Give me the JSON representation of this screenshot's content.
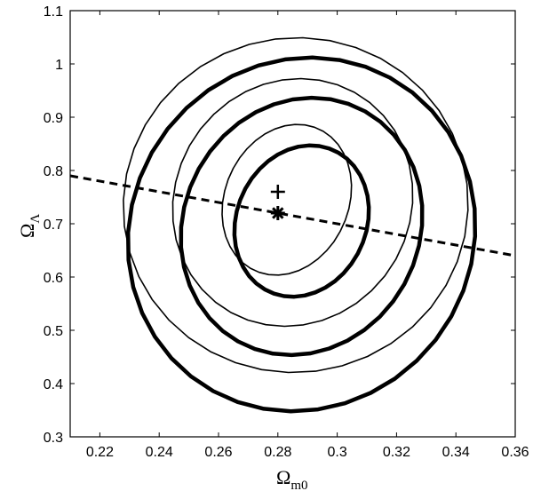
{
  "chart_data": {
    "type": "line",
    "xlabel": {
      "main": "Ω",
      "sub": "m0"
    },
    "ylabel": {
      "main": "Ω",
      "sub": "Λ"
    },
    "xlim": [
      0.21,
      0.36
    ],
    "ylim": [
      0.3,
      1.1
    ],
    "x_ticks": [
      "0.22",
      "0.24",
      "0.26",
      "0.28",
      "0.3",
      "0.32",
      "0.34",
      "0.36"
    ],
    "y_ticks": [
      "0.3",
      "0.4",
      "0.5",
      "0.6",
      "0.7",
      "0.8",
      "0.9",
      "1",
      "1.1"
    ],
    "grid": false,
    "contours": [
      {
        "set": "thick",
        "level": 1,
        "center": [
          0.288,
          0.705
        ],
        "rx": 0.022,
        "ry": 0.145,
        "tilt": -0.35,
        "stroke_width": 4.5
      },
      {
        "set": "thick",
        "level": 2,
        "center": [
          0.288,
          0.695
        ],
        "rx": 0.04,
        "ry": 0.245,
        "tilt": -0.35,
        "stroke_width": 4.5
      },
      {
        "set": "thick",
        "level": 3,
        "center": [
          0.288,
          0.68
        ],
        "rx": 0.058,
        "ry": 0.335,
        "tilt": -0.35,
        "stroke_width": 4.5
      },
      {
        "set": "thin",
        "level": 1,
        "center": [
          0.283,
          0.745
        ],
        "rx": 0.021,
        "ry": 0.145,
        "tilt": -0.35,
        "stroke_width": 1.6
      },
      {
        "set": "thin",
        "level": 2,
        "center": [
          0.285,
          0.74
        ],
        "rx": 0.04,
        "ry": 0.235,
        "tilt": -0.35,
        "stroke_width": 1.6
      },
      {
        "set": "thin",
        "level": 3,
        "center": [
          0.286,
          0.735
        ],
        "rx": 0.058,
        "ry": 0.315,
        "tilt": -0.35,
        "stroke_width": 1.6
      }
    ],
    "dashed_line": {
      "x": [
        0.21,
        0.36
      ],
      "y": [
        0.79,
        0.64
      ]
    },
    "markers": [
      {
        "type": "plus",
        "x": 0.28,
        "y": 0.76
      },
      {
        "type": "asterisk",
        "x": 0.28,
        "y": 0.72
      }
    ],
    "colors": {
      "line": "#000000",
      "background": "#ffffff"
    }
  }
}
